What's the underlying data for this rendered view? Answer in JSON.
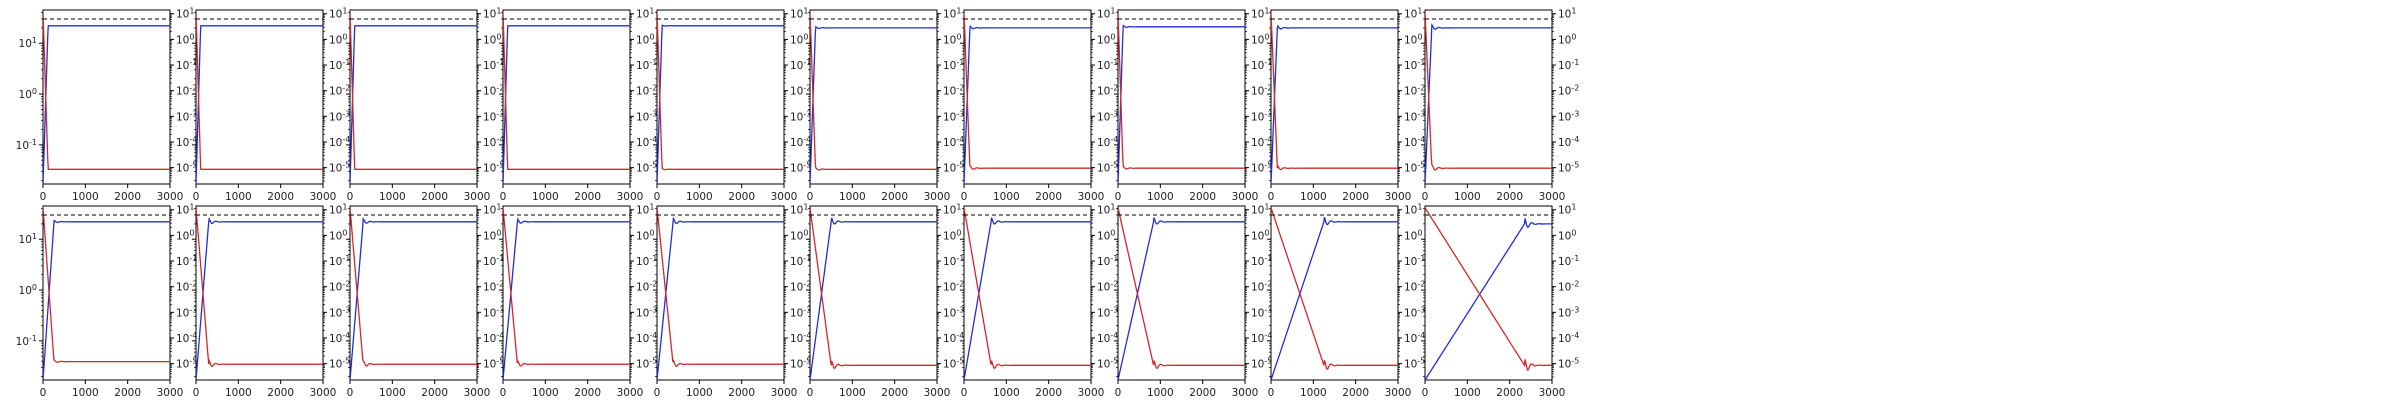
{
  "chart_data": {
    "type": "line",
    "layout": {
      "rows": 2,
      "cols": 10
    },
    "xlim": [
      0,
      3000
    ],
    "x_ticks": [
      0,
      1000,
      2000,
      3000
    ],
    "left_axis": {
      "scale": "log",
      "ylim": [
        0.017,
        45
      ],
      "ticks": [
        {
          "v": 0.1,
          "label": "10^-1"
        },
        {
          "v": 1,
          "label": "10^0"
        },
        {
          "v": 10,
          "label": "10^1"
        }
      ]
    },
    "right_axis": {
      "scale": "log",
      "ylim": [
        2.3e-06,
        14
      ],
      "ticks": [
        {
          "v": 1e-05,
          "label": "10^-5"
        },
        {
          "v": 0.0001,
          "label": "10^-4"
        },
        {
          "v": 0.001,
          "label": "10^-3"
        },
        {
          "v": 0.01,
          "label": "10^-2"
        },
        {
          "v": 0.1,
          "label": "10^-1"
        },
        {
          "v": 1,
          "label": "10^0"
        },
        {
          "v": 10,
          "label": "10^1"
        }
      ]
    },
    "reference_level_left": 30,
    "colors": {
      "rising": "#1f2fd6",
      "decaying": "#d62728",
      "reference": "#000000"
    },
    "panels": [
      {
        "row": 0,
        "col": 0,
        "t_rise": 120,
        "plateau_left": 22,
        "floor_right": 8.6e-06,
        "ringing": 0.0
      },
      {
        "row": 0,
        "col": 1,
        "t_rise": 110,
        "plateau_left": 22,
        "floor_right": 8.6e-06,
        "ringing": 0.0
      },
      {
        "row": 0,
        "col": 2,
        "t_rise": 110,
        "plateau_left": 22,
        "floor_right": 8.6e-06,
        "ringing": 0.0
      },
      {
        "row": 0,
        "col": 3,
        "t_rise": 110,
        "plateau_left": 22,
        "floor_right": 8.6e-06,
        "ringing": 0.0
      },
      {
        "row": 0,
        "col": 4,
        "t_rise": 120,
        "plateau_left": 22,
        "floor_right": 8.6e-06,
        "ringing": 0.05
      },
      {
        "row": 0,
        "col": 5,
        "t_rise": 130,
        "plateau_left": 20,
        "floor_right": 8.6e-06,
        "ringing": 0.1
      },
      {
        "row": 0,
        "col": 6,
        "t_rise": 140,
        "plateau_left": 20,
        "floor_right": 9.5e-06,
        "ringing": 0.15
      },
      {
        "row": 0,
        "col": 7,
        "t_rise": 120,
        "plateau_left": 21,
        "floor_right": 9.5e-06,
        "ringing": 0.1
      },
      {
        "row": 0,
        "col": 8,
        "t_rise": 150,
        "plateau_left": 20,
        "floor_right": 9.5e-06,
        "ringing": 0.2
      },
      {
        "row": 0,
        "col": 9,
        "t_rise": 160,
        "plateau_left": 20,
        "floor_right": 9.5e-06,
        "ringing": 0.25
      },
      {
        "row": 1,
        "col": 0,
        "t_rise": 260,
        "plateau_left": 22,
        "floor_right": 1.2e-05,
        "ringing": 0.1
      },
      {
        "row": 1,
        "col": 1,
        "t_rise": 300,
        "plateau_left": 22,
        "floor_right": 9.5e-06,
        "ringing": 0.3
      },
      {
        "row": 1,
        "col": 2,
        "t_rise": 310,
        "plateau_left": 22,
        "floor_right": 9.5e-06,
        "ringing": 0.25
      },
      {
        "row": 1,
        "col": 3,
        "t_rise": 340,
        "plateau_left": 22,
        "floor_right": 9.5e-06,
        "ringing": 0.25
      },
      {
        "row": 1,
        "col": 4,
        "t_rise": 380,
        "plateau_left": 22,
        "floor_right": 9.5e-06,
        "ringing": 0.3
      },
      {
        "row": 1,
        "col": 5,
        "t_rise": 500,
        "plateau_left": 22,
        "floor_right": 8.6e-06,
        "ringing": 0.4
      },
      {
        "row": 1,
        "col": 6,
        "t_rise": 640,
        "plateau_left": 22,
        "floor_right": 8.6e-06,
        "ringing": 0.4
      },
      {
        "row": 1,
        "col": 7,
        "t_rise": 840,
        "plateau_left": 22,
        "floor_right": 8.6e-06,
        "ringing": 0.4
      },
      {
        "row": 1,
        "col": 8,
        "t_rise": 1250,
        "plateau_left": 22,
        "floor_right": 8.6e-06,
        "ringing": 0.5
      },
      {
        "row": 1,
        "col": 9,
        "t_rise": 2350,
        "plateau_left": 20,
        "floor_right": 8.6e-06,
        "ringing": 0.6
      }
    ]
  }
}
